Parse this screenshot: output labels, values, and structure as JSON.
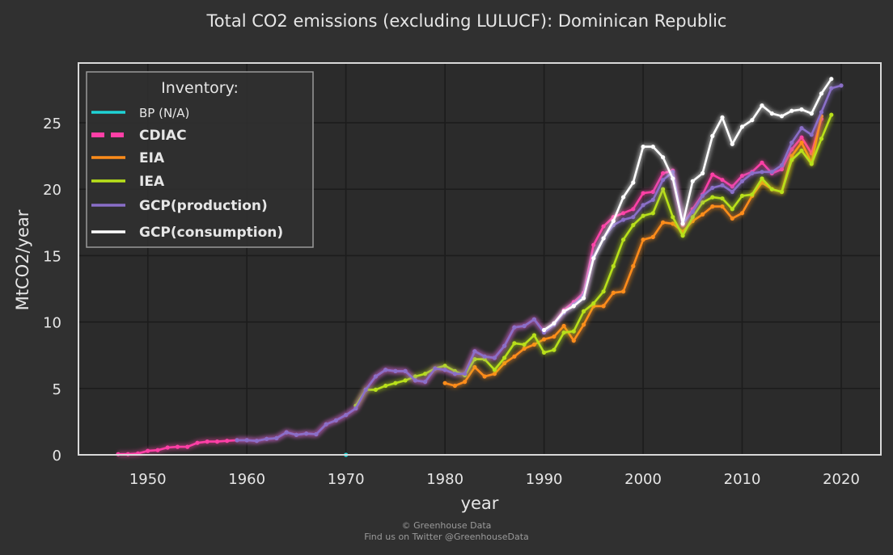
{
  "chart_data": {
    "type": "line",
    "title": "Total CO2 emissions (excluding LULUCF): Dominican Republic",
    "xlabel": "year",
    "ylabel": "MtCO2/year",
    "xlim": [
      1943,
      2024
    ],
    "ylim": [
      0,
      29.5
    ],
    "xticks": [
      1950,
      1960,
      1970,
      1980,
      1990,
      2000,
      2010,
      2020
    ],
    "yticks": [
      0,
      5,
      10,
      15,
      20,
      25
    ],
    "grid": true,
    "legend_title": "Inventory:",
    "legend_position": "top-left",
    "series": [
      {
        "name": "BP (N/A)",
        "color": "#1fd3d6",
        "dashed": false,
        "glow": false,
        "x": [
          1970
        ],
        "y": [
          0
        ]
      },
      {
        "name": "CDIAC",
        "color": "#ff3fa6",
        "dashed": true,
        "glow": true,
        "x": [
          1947,
          1948,
          1949,
          1950,
          1951,
          1952,
          1953,
          1954,
          1955,
          1956,
          1957,
          1958,
          1959,
          1960,
          1961,
          1962,
          1963,
          1964,
          1965,
          1966,
          1967,
          1968,
          1969,
          1970,
          1971,
          1972,
          1973,
          1974,
          1975,
          1976,
          1977,
          1978,
          1979,
          1980,
          1981,
          1982,
          1983,
          1984,
          1985,
          1986,
          1987,
          1988,
          1989,
          1990,
          1991,
          1992,
          1993,
          1994,
          1995,
          1996,
          1997,
          1998,
          1999,
          2000,
          2001,
          2002,
          2003,
          2004,
          2005,
          2006,
          2007,
          2008,
          2009,
          2010,
          2011,
          2012,
          2013,
          2014,
          2015,
          2016,
          2017,
          2018
        ],
        "y": [
          0.05,
          0.05,
          0.1,
          0.3,
          0.35,
          0.55,
          0.6,
          0.6,
          0.9,
          1.0,
          1.0,
          1.05,
          1.1,
          1.1,
          1.05,
          1.2,
          1.25,
          1.7,
          1.5,
          1.6,
          1.55,
          2.3,
          2.6,
          3.0,
          3.5,
          4.9,
          5.9,
          6.4,
          6.3,
          6.3,
          5.6,
          5.5,
          6.5,
          6.4,
          6.1,
          6.1,
          7.8,
          7.4,
          7.3,
          8.2,
          9.6,
          9.7,
          10.2,
          9.3,
          9.9,
          10.9,
          11.5,
          12.2,
          15.8,
          17.2,
          17.9,
          18.2,
          18.5,
          19.7,
          19.8,
          21.2,
          21.4,
          17.3,
          18.5,
          19.6,
          21.1,
          20.7,
          20.2,
          21.0,
          21.3,
          22.0,
          21.2,
          21.5,
          23.0,
          23.9,
          22.7,
          25.3
        ]
      },
      {
        "name": "EIA",
        "color": "#ff8c1a",
        "dashed": false,
        "glow": true,
        "x": [
          1980,
          1981,
          1982,
          1983,
          1984,
          1985,
          1986,
          1987,
          1988,
          1989,
          1990,
          1991,
          1992,
          1993,
          1994,
          1995,
          1996,
          1997,
          1998,
          1999,
          2000,
          2001,
          2002,
          2003,
          2004,
          2005,
          2006,
          2007,
          2008,
          2009,
          2010,
          2011,
          2012,
          2013,
          2014,
          2015,
          2016,
          2017,
          2018
        ],
        "y": [
          5.4,
          5.2,
          5.5,
          6.6,
          5.9,
          6.1,
          6.9,
          7.4,
          8.0,
          8.3,
          8.7,
          8.9,
          9.7,
          8.6,
          9.8,
          11.2,
          11.2,
          12.2,
          12.3,
          14.2,
          16.2,
          16.4,
          17.5,
          17.4,
          16.8,
          17.6,
          18.1,
          18.7,
          18.7,
          17.8,
          18.2,
          19.5,
          20.5,
          20.0,
          19.8,
          22.5,
          23.5,
          22.0,
          25.5
        ]
      },
      {
        "name": "IEA",
        "color": "#b8e01a",
        "dashed": false,
        "glow": true,
        "x": [
          1971,
          1972,
          1973,
          1974,
          1975,
          1976,
          1977,
          1978,
          1979,
          1980,
          1981,
          1982,
          1983,
          1984,
          1985,
          1986,
          1987,
          1988,
          1989,
          1990,
          1991,
          1992,
          1993,
          1994,
          1995,
          1996,
          1997,
          1998,
          1999,
          2000,
          2001,
          2002,
          2003,
          2004,
          2005,
          2006,
          2007,
          2008,
          2009,
          2010,
          2011,
          2012,
          2013,
          2014,
          2015,
          2016,
          2017,
          2018,
          2019
        ],
        "y": [
          3.7,
          4.9,
          4.9,
          5.2,
          5.4,
          5.6,
          5.9,
          6.1,
          6.5,
          6.7,
          6.3,
          6.0,
          7.2,
          7.2,
          6.4,
          7.3,
          8.4,
          8.3,
          9.0,
          7.7,
          7.9,
          9.2,
          9.3,
          10.8,
          11.4,
          12.3,
          14.2,
          16.2,
          17.3,
          18.0,
          18.2,
          20.0,
          17.9,
          16.5,
          17.9,
          19.0,
          19.4,
          19.3,
          18.5,
          19.5,
          19.6,
          20.8,
          20.0,
          19.8,
          22.2,
          22.9,
          21.9,
          23.8,
          25.6
        ]
      },
      {
        "name": "GCP(production)",
        "color": "#8a6fc8",
        "dashed": false,
        "glow": true,
        "x": [
          1959,
          1960,
          1961,
          1962,
          1963,
          1964,
          1965,
          1966,
          1967,
          1968,
          1969,
          1970,
          1971,
          1972,
          1973,
          1974,
          1975,
          1976,
          1977,
          1978,
          1979,
          1980,
          1981,
          1982,
          1983,
          1984,
          1985,
          1986,
          1987,
          1988,
          1989,
          1990,
          1991,
          1992,
          1993,
          1994,
          1995,
          1996,
          1997,
          1998,
          1999,
          2000,
          2001,
          2002,
          2003,
          2004,
          2005,
          2006,
          2007,
          2008,
          2009,
          2010,
          2011,
          2012,
          2013,
          2014,
          2015,
          2016,
          2017,
          2018,
          2019,
          2020
        ],
        "y": [
          1.1,
          1.1,
          1.05,
          1.2,
          1.25,
          1.7,
          1.5,
          1.6,
          1.55,
          2.3,
          2.6,
          3.0,
          3.5,
          4.9,
          5.9,
          6.4,
          6.3,
          6.3,
          5.6,
          5.5,
          6.5,
          6.4,
          6.1,
          6.1,
          7.8,
          7.4,
          7.3,
          8.2,
          9.6,
          9.7,
          10.2,
          9.2,
          9.8,
          10.7,
          11.3,
          12.0,
          14.9,
          16.3,
          17.3,
          17.7,
          17.9,
          18.8,
          19.2,
          20.7,
          21.3,
          17.4,
          18.3,
          19.5,
          20.1,
          20.3,
          19.8,
          20.6,
          21.2,
          21.3,
          21.3,
          21.8,
          23.5,
          24.6,
          24.1,
          25.8,
          27.6,
          27.8
        ]
      },
      {
        "name": "GCP(consumption)",
        "color": "#ffffff",
        "dashed": false,
        "glow": true,
        "x": [
          1990,
          1991,
          1992,
          1993,
          1994,
          1995,
          1996,
          1997,
          1998,
          1999,
          2000,
          2001,
          2002,
          2003,
          2004,
          2005,
          2006,
          2007,
          2008,
          2009,
          2010,
          2011,
          2012,
          2013,
          2014,
          2015,
          2016,
          2017,
          2018,
          2019
        ],
        "y": [
          9.4,
          9.9,
          10.8,
          11.2,
          11.8,
          14.8,
          16.3,
          17.6,
          19.4,
          20.5,
          23.2,
          23.2,
          22.4,
          20.8,
          17.4,
          20.6,
          21.2,
          24.0,
          25.4,
          23.4,
          24.7,
          25.2,
          26.3,
          25.7,
          25.5,
          25.9,
          26.0,
          25.7,
          27.2,
          28.3
        ]
      }
    ]
  },
  "footer": {
    "line1": "© Greenhouse Data",
    "line2": "Find us on Twitter @GreenhouseData"
  }
}
